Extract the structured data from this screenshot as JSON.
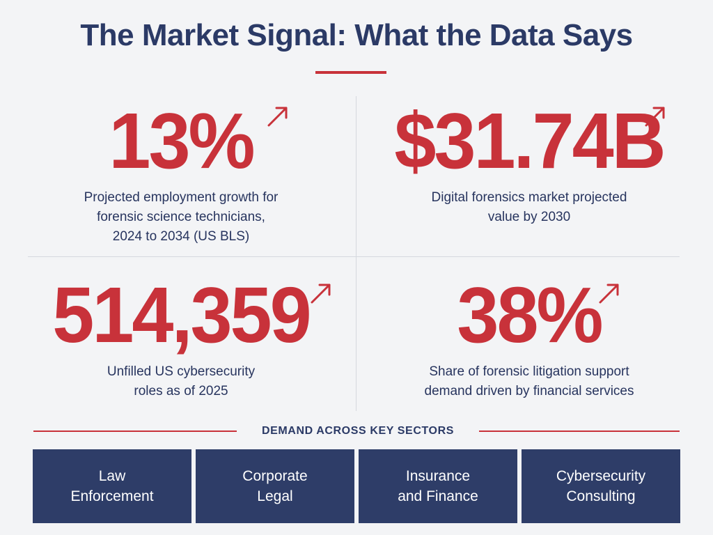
{
  "header": {
    "title": "The Market Signal: What the Data Says"
  },
  "stats": [
    {
      "value": "13%",
      "label": "Projected employment growth for\nforensic science technicians,\n2024 to 2034 (US BLS)"
    },
    {
      "value": "$31.74B",
      "label": "Digital forensics market projected\nvalue by 2030"
    },
    {
      "value": "514,359",
      "label": "Unfilled US cybersecurity\nroles as of 2025"
    },
    {
      "value": "38%",
      "label": "Share of forensic litigation support\ndemand driven by financial services"
    }
  ],
  "sectors": {
    "title": "DEMAND ACROSS KEY SECTORS",
    "items": [
      {
        "label": "Law\nEnforcement"
      },
      {
        "label": "Corporate\nLegal"
      },
      {
        "label": "Insurance\nand Finance"
      },
      {
        "label": "Cybersecurity\nConsulting"
      }
    ]
  },
  "colors": {
    "accent": "#c8323a",
    "navy": "#2b3a66",
    "background": "#f3f4f6"
  },
  "icons": {
    "trend": "arrow-up-right-icon"
  }
}
